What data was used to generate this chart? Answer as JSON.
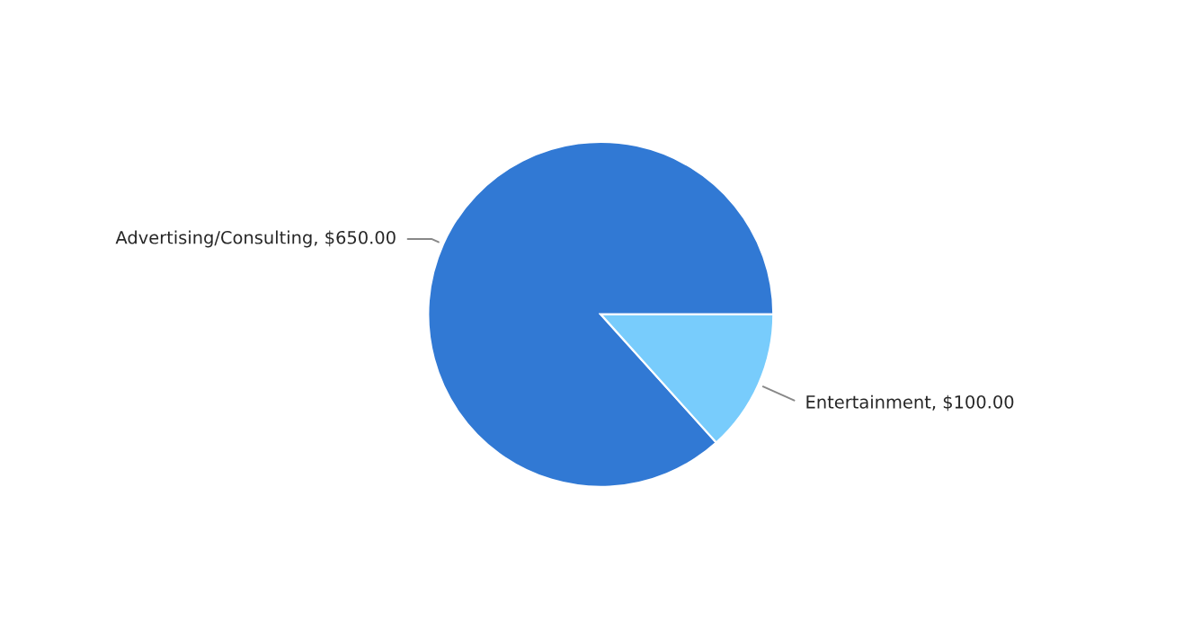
{
  "chart_data": {
    "type": "pie",
    "categories": [
      "Advertising/Consulting",
      "Entertainment"
    ],
    "values": [
      650,
      100
    ],
    "value_labels": [
      "$650.00",
      "$100.00"
    ],
    "colors": [
      "#3179d4",
      "#78ccfc"
    ],
    "legend": false
  }
}
